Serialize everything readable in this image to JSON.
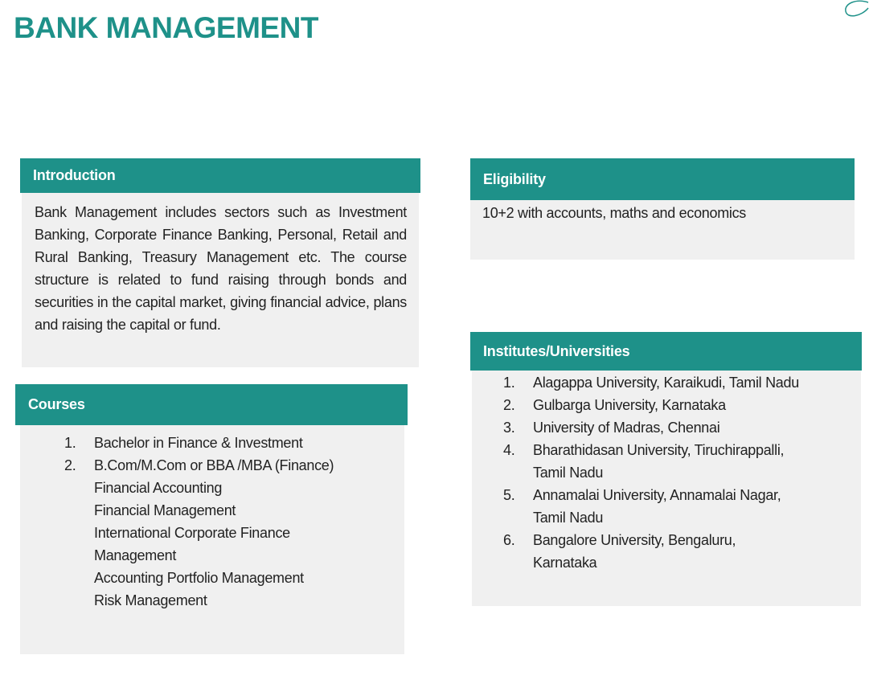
{
  "title": "BANK MANAGEMENT",
  "colors": {
    "accent": "#1e9189",
    "panel": "#f0f0f0"
  },
  "introduction": {
    "heading": "Introduction",
    "text": "Bank Management includes sectors such as Investment Banking, Corporate Finance Banking, Personal, Retail and Rural Banking, Treasury Management etc. The course structure is related to fund raising through bonds and securities in the capital market, giving financial advice, plans and raising the capital or fund."
  },
  "eligibility": {
    "heading": "Eligibility",
    "text": "10+2 with accounts, maths and economics"
  },
  "courses": {
    "heading": "Courses",
    "items": [
      {
        "num": "1.",
        "lines": [
          "Bachelor in Finance & Investment"
        ]
      },
      {
        "num": "2.",
        "lines": [
          "B.Com/M.Com or BBA /MBA (Finance)",
          "Financial Accounting",
          "Financial Management",
          "International Corporate Finance",
          "Management",
          "Accounting Portfolio Management",
          "Risk Management"
        ]
      }
    ]
  },
  "institutes": {
    "heading": "Institutes/Universities",
    "items": [
      {
        "num": "1.",
        "lines": [
          "Alagappa University, Karaikudi, Tamil Nadu"
        ]
      },
      {
        "num": "2.",
        "lines": [
          "Gulbarga University, Karnataka"
        ]
      },
      {
        "num": "3.",
        "lines": [
          "University of Madras, Chennai"
        ]
      },
      {
        "num": "4.",
        "lines": [
          "Bharathidasan University, Tiruchirappalli,",
          "Tamil Nadu"
        ]
      },
      {
        "num": "5.",
        "lines": [
          "Annamalai University, Annamalai Nagar,",
          "Tamil Nadu"
        ]
      },
      {
        "num": "6.",
        "lines": [
          "Bangalore University, Bengaluru,",
          "Karnataka"
        ]
      }
    ]
  }
}
